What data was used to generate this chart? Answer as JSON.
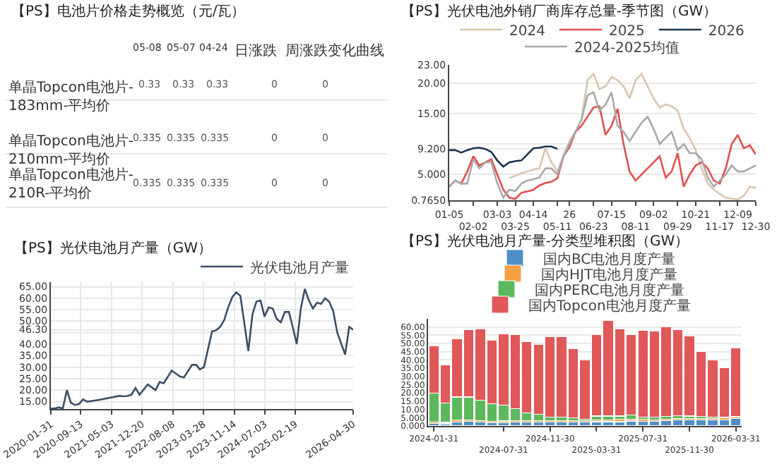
{
  "chart_data": [
    {
      "type": "other",
      "title": "【PS】电池片价格走势概览（元/瓦）",
      "annotations": [
        "05-08",
        "05-07",
        "04-24",
        "日涨跌",
        "周涨跌",
        "变化曲线",
        "单晶Topcon电池片-183mm-平均价",
        "0.33",
        "0.33",
        "0.33",
        "0",
        "0",
        "单晶Topcon电池片-210mm-平均价",
        "0.335",
        "0.335",
        "0.335",
        "0",
        "0",
        "单晶Topcon电池片-210R-平均价",
        "0.335",
        "0.335",
        "0.335",
        "0",
        "0"
      ]
    },
    {
      "type": "line",
      "title": "【PS】光伏电池外销厂商库存总量-季节图（GW）",
      "legend": "top",
      "grid": "y",
      "categories": [
        "01-05",
        null,
        null,
        null,
        "02-02",
        null,
        null,
        null,
        "03-03",
        null,
        null,
        "03-25",
        null,
        null,
        "04-14",
        null,
        null,
        null,
        "05-11",
        null,
        "26",
        null,
        null,
        null,
        "06-23",
        null,
        null,
        "07-15",
        null,
        null,
        null,
        "08-11",
        null,
        null,
        "09-02",
        null,
        null,
        null,
        "09-29",
        null,
        null,
        "10-21",
        null,
        null,
        null,
        "11-17",
        null,
        null,
        "12-09",
        null,
        null,
        "12-30"
      ],
      "ylim": [
        0.765,
        23
      ],
      "yticks": [
        {
          "value": 0.765,
          "label": "0.7650"
        },
        {
          "value": 5,
          "label": "5.000"
        },
        {
          "value": 9.2,
          "label": "9.200"
        },
        {
          "value": 10,
          "label": null
        },
        {
          "value": 15,
          "label": "15.00"
        },
        {
          "value": 20,
          "label": "20.00"
        },
        {
          "value": 23,
          "label": "23.00"
        }
      ],
      "series": [
        {
          "name": "2024",
          "color": "#d9c6ae",
          "values": [
            null,
            null,
            null,
            null,
            null,
            null,
            null,
            null,
            null,
            null,
            4.4,
            4.8,
            5.2,
            5.5,
            5.8,
            6.0,
            9.3,
            7.0,
            5.5,
            8.0,
            10.5,
            12.0,
            14.0,
            20.5,
            21.5,
            19.0,
            19.5,
            21.0,
            20.5,
            19.5,
            17.5,
            20.5,
            21.5,
            19.5,
            17.5,
            16.0,
            16.5,
            16.2,
            15.5,
            12.5,
            11.0,
            9.0,
            6.0,
            3.5,
            2.5,
            1.8,
            1.2,
            1.0,
            0.9,
            1.5,
            3.0,
            2.8
          ]
        },
        {
          "name": "2025",
          "color": "#e0504f",
          "values": [
            3.0,
            4.0,
            3.5,
            5.5,
            8.0,
            6.5,
            7.0,
            7.5,
            5.0,
            2.5,
            1.2,
            1.0,
            2.0,
            2.2,
            2.5,
            3.2,
            3.6,
            3.8,
            4.4,
            8.0,
            9.5,
            12.0,
            13.0,
            14.5,
            16.0,
            16.2,
            11.5,
            13.0,
            15.8,
            10.0,
            5.5,
            4.0,
            5.0,
            6.0,
            7.0,
            8.0,
            4.5,
            5.5,
            8.5,
            3.0,
            5.0,
            6.5,
            7.0,
            6.0,
            4.0,
            3.5,
            6.0,
            10.0,
            11.5,
            9.3,
            9.8,
            8.3
          ]
        },
        {
          "name": "2026",
          "color": "#1f3450",
          "values": [
            9.0,
            9.0,
            8.6,
            9.0,
            9.3,
            9.4,
            9.2,
            8.7,
            7.3,
            6.3,
            7.0,
            7.2,
            7.3,
            8.3,
            9.3,
            9.4,
            9.6,
            9.6,
            9.2,
            null,
            null,
            null,
            null,
            null,
            null,
            null,
            null,
            null,
            null,
            null,
            null,
            null,
            null,
            null,
            null,
            null,
            null,
            null,
            null,
            null,
            null,
            null,
            null,
            null,
            null,
            null,
            null,
            null,
            null,
            null,
            null,
            null
          ]
        },
        {
          "name": "2024-2025均值",
          "color": "#a8a8a8",
          "values": [
            3.0,
            4.0,
            3.5,
            3.5,
            7.5,
            6.0,
            7.0,
            7.0,
            3.5,
            1.2,
            2.5,
            2.3,
            3.5,
            4.0,
            4.2,
            4.5,
            6.0,
            6.0,
            5.0,
            8.0,
            10.0,
            12.0,
            14.0,
            18.0,
            18.5,
            15.5,
            16.5,
            18.5,
            13.0,
            12.0,
            10.5,
            12.0,
            13.5,
            14.5,
            12.5,
            10.0,
            11.0,
            12.0,
            9.0,
            10.0,
            8.5,
            8.5,
            7.5,
            4.5,
            3.0,
            4.0,
            5.0,
            6.5,
            5.5,
            5.5,
            6.0,
            6.5
          ]
        }
      ]
    },
    {
      "type": "line",
      "title": "【PS】光伏电池月产量（GW）",
      "legend": "top right",
      "grid": true,
      "x": [
        "2020-01-31",
        "2020-02-29",
        "2020-03-31",
        "2020-04-30",
        "2020-05-31",
        "2020-06-30",
        "2020-07-31",
        "2020-08-31",
        "2020-09-30",
        "2020-10-31",
        "2021-01-31",
        "2021-06-30",
        "2021-07-31",
        "2021-08-31",
        "2021-09-30",
        "2021-10-31",
        "2021-11-30",
        "2022-01-31",
        "2022-03-31",
        "2022-04-30",
        "2022-05-31",
        "2022-07-31",
        "2022-09-30",
        "2022-10-31",
        "2022-12-31",
        "2023-01-31",
        "2023-02-28",
        "2023-03-31",
        "2023-05-31",
        "2023-06-30",
        "2023-07-31",
        "2023-08-31",
        "2023-09-30",
        "2023-10-31",
        "2023-11-30",
        "2023-12-31",
        "2024-01-31",
        "2024-02-29",
        "2024-03-31",
        "2024-04-30",
        "2024-05-31",
        "2024-06-30",
        "2024-07-31",
        "2024-08-31",
        "2024-09-30",
        "2024-10-31",
        "2024-11-30",
        "2024-12-31",
        "2025-01-31",
        "2025-02-28",
        "2025-03-31",
        "2025-04-30",
        "2025-05-31",
        "2025-06-30",
        "2025-07-31",
        "2025-08-31",
        "2025-09-30",
        "2025-10-31",
        "2025-11-30",
        "2025-12-31",
        "2026-01-31",
        "2026-02-28",
        "2026-03-31",
        "2026-04-30"
      ],
      "xlim": [
        "2020-01-31",
        "2026-04-30"
      ],
      "xticks": [
        "2020-01-31",
        "2020-09-13",
        "2021-05-03",
        "2021-12-20",
        "2022-08-08",
        "2023-03-28",
        "2023-11-14",
        "2024-07-03",
        "2025-02-19",
        "2026-04-30"
      ],
      "ylim": [
        11.8,
        67
      ],
      "yticks": [
        {
          "value": 15,
          "label": "15.00"
        },
        {
          "value": 20,
          "label": "20.00"
        },
        {
          "value": 25,
          "label": "25.00"
        },
        {
          "value": 30,
          "label": "30.00"
        },
        {
          "value": 35,
          "label": "35.00"
        },
        {
          "value": 40,
          "label": "40.00"
        },
        {
          "value": 46.3,
          "label": "46.30"
        },
        {
          "value": 45,
          "label": null
        },
        {
          "value": 50,
          "label": "50.00"
        },
        {
          "value": 55,
          "label": "55.00"
        },
        {
          "value": 60,
          "label": "60.00"
        },
        {
          "value": 65,
          "label": "65.00"
        }
      ],
      "series": [
        {
          "name": "光伏电池月产量",
          "color": "#3d4f66",
          "values": [
            12.0,
            12.0,
            12.5,
            12.0,
            20.0,
            14.5,
            13.5,
            14.0,
            16.0,
            15.0,
            15.8,
            17.5,
            17.3,
            17.5,
            18.0,
            21.0,
            18.0,
            22.5,
            20.0,
            23.5,
            23.0,
            28.5,
            26.0,
            25.5,
            31.0,
            31.0,
            29.0,
            30.0,
            45.5,
            46.0,
            47.5,
            50.5,
            56.0,
            60.5,
            62.5,
            61.0,
            48.5,
            37,
            53,
            58.5,
            59,
            52,
            56,
            55.5,
            51,
            49.5,
            54,
            54,
            47,
            40,
            55.5,
            64,
            59,
            55.5,
            58,
            57.5,
            60,
            58.5,
            54.5,
            45,
            40,
            35.5,
            47.5,
            46.3
          ]
        }
      ]
    },
    {
      "type": "bar",
      "stacked": true,
      "title": "【PS】光伏电池月产量-分类型堆积图（GW）",
      "legend": "top",
      "grid": "y",
      "categories": [
        "2024-01-31",
        null,
        null,
        null,
        null,
        null,
        "2024-07-31",
        null,
        null,
        null,
        "2024-11-30",
        null,
        null,
        null,
        "2025-03-31",
        null,
        null,
        null,
        "2025-07-31",
        null,
        null,
        null,
        "2025-11-30",
        null,
        null,
        null,
        "2026-03-31"
      ],
      "ylim": [
        0,
        65
      ],
      "yticks": [
        {
          "value": 0,
          "label": "0.000"
        },
        {
          "value": 5,
          "label": "5.000"
        },
        {
          "value": 10,
          "label": "10.00"
        },
        {
          "value": 15,
          "label": "15.00"
        },
        {
          "value": 20,
          "label": "20.00"
        },
        {
          "value": 25,
          "label": "25.00"
        },
        {
          "value": 30,
          "label": "30.00"
        },
        {
          "value": 35,
          "label": "35.00"
        },
        {
          "value": 40,
          "label": "40.00"
        },
        {
          "value": 45,
          "label": "45.00"
        },
        {
          "value": 50,
          "label": "50.00"
        },
        {
          "value": 55,
          "label": "55.00"
        },
        {
          "value": 60,
          "label": "60.00"
        }
      ],
      "series": [
        {
          "name": "国内BC电池月度产量",
          "color": "#4f8fc8",
          "values": [
            1.5,
            1.3,
            2.5,
            2.7,
            2.2,
            1.8,
            2.0,
            2.2,
            2.3,
            2.3,
            2.3,
            2.3,
            2.3,
            2.3,
            2.6,
            2.6,
            2.6,
            3.0,
            2.7,
            2.8,
            3.2,
            3.5,
            3.5,
            3.6,
            3.7,
            3.8,
            4.4
          ]
        },
        {
          "name": "国内HJT电池月度产量",
          "color": "#f5a043",
          "values": [
            0.8,
            0.8,
            1.0,
            1.0,
            1.0,
            1.0,
            1.0,
            1.0,
            1.0,
            1.0,
            1.0,
            1.0,
            1.0,
            1.0,
            1.0,
            1.0,
            1.5,
            1.2,
            1.2,
            1.0,
            1.0,
            0.9,
            0.9,
            0.9,
            0.9,
            1.0,
            1.0
          ]
        },
        {
          "name": "国内PERC电池月度产量",
          "color": "#5cb85c",
          "values": [
            17.7,
            11.9,
            14.0,
            13.8,
            12.3,
            10.7,
            9.5,
            7.3,
            4.7,
            3.7,
            2.2,
            2.2,
            1.7,
            0.7,
            2.4,
            2.4,
            1.9,
            2.3,
            1.6,
            1.7,
            1.6,
            1.8,
            1.6,
            1.3,
            0.9,
            0.7,
            0.4
          ]
        },
        {
          "name": "国内Topcon电池月度产量",
          "color": "#e05858",
          "values": [
            28.5,
            23,
            35.5,
            41,
            43.5,
            38.5,
            43.5,
            45,
            43,
            42.5,
            48.5,
            48.5,
            42,
            36,
            49.5,
            58,
            53,
            49,
            52.5,
            52,
            54.2,
            52.3,
            48.5,
            39.2,
            34.5,
            30,
            41.7
          ]
        }
      ]
    }
  ]
}
